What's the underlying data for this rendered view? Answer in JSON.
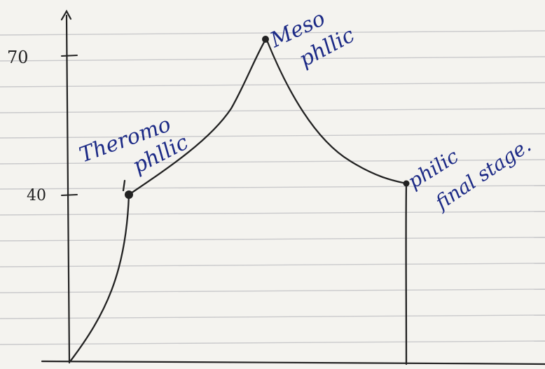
{
  "axis": {
    "ticks": [
      {
        "label": "70"
      },
      {
        "label": "40"
      }
    ]
  },
  "labels": {
    "thermophilic_line1": "Theromo",
    "thermophilic_line2": "phllic",
    "mesophilic_line1": "Meso",
    "mesophilic_line2": "phllic",
    "final_line1": "philic",
    "final_line2": "final stage."
  },
  "colors": {
    "paper": "#f4f3ef",
    "rule_lines": "#c9c9cb",
    "pencil": "#222222",
    "blue_ink": "#1c2a86"
  }
}
